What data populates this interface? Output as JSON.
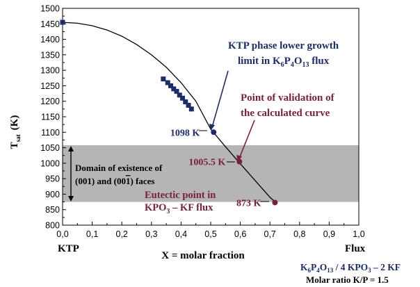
{
  "chart_data": {
    "type": "line",
    "xlim": [
      0,
      1.0
    ],
    "ylim": [
      800,
      1500
    ],
    "x_ticks": [
      0,
      0.1,
      0.2,
      0.3,
      0.4,
      0.5,
      0.6,
      0.7,
      0.8,
      0.9,
      1.0
    ],
    "x_tick_labels": [
      "0,0",
      "0,1",
      "0,2",
      "0,3",
      "0,4",
      "0,5",
      "0,6",
      "0,7",
      "0,8",
      "0,9",
      "1,0"
    ],
    "y_ticks": [
      800,
      850,
      900,
      950,
      1000,
      1050,
      1100,
      1150,
      1200,
      1250,
      1300,
      1350,
      1400,
      1450,
      1500
    ],
    "xlabel": "X = molar fraction",
    "ylabel_main": "T",
    "ylabel_sub": "sat",
    "ylabel_unit": "(K)",
    "x_end_left": "KTP",
    "x_end_right": "Flux",
    "series": [
      {
        "type": "line",
        "color": "#000000",
        "x": [
          0,
          0.05,
          0.1,
          0.15,
          0.2,
          0.25,
          0.3,
          0.35,
          0.4,
          0.45,
          0.5,
          0.55,
          0.6,
          0.65,
          0.7,
          0.72
        ],
        "y": [
          1455,
          1452,
          1444,
          1430,
          1410,
          1383,
          1350,
          1310,
          1260,
          1200,
          1110,
          1053,
          998,
          944,
          890,
          873
        ]
      },
      {
        "type": "scatter",
        "color": "#1c2c6a",
        "x": [
          0,
          0.34,
          0.355,
          0.365,
          0.375,
          0.385,
          0.395,
          0.405,
          0.415,
          0.425,
          0.435
        ],
        "y": [
          1455,
          1272,
          1260,
          1250,
          1240,
          1232,
          1220,
          1210,
          1198,
          1187,
          1175
        ]
      }
    ],
    "key_points": [
      {
        "x": 0.51,
        "y": 1100,
        "label": "1098 K",
        "color": "#1c2c6a"
      },
      {
        "x": 0.597,
        "y": 1005,
        "label": "1005.5 K",
        "color": "#7a1f3a"
      },
      {
        "x": 0.717,
        "y": 873,
        "label": "873 K",
        "color": "#7a1f3a"
      }
    ],
    "domain_band": {
      "y_from": 875,
      "y_to": 1058,
      "color": "#b5b5b5"
    },
    "annotations": {
      "ktp_limit_line1": "KTP phase lower growth",
      "ktp_limit_line2_a": "limit in K",
      "ktp_limit_line2_s1": "6",
      "ktp_limit_line2_b": "P",
      "ktp_limit_line2_s2": "4",
      "ktp_limit_line2_c": "O",
      "ktp_limit_line2_s3": "13",
      "ktp_limit_line2_d": " flux",
      "validation_line1": "Point of validation of",
      "validation_line2": "the calculated curve",
      "domain_line1": "Domain of existence of",
      "domain_line2_a": "(001) and (00",
      "domain_line2_bar": "1",
      "domain_line2_b": ") faces",
      "eutectic_line1": "Eutectic point in",
      "eutectic_line2": "KPO",
      "eutectic_line2_sub": "3",
      "eutectic_line2_b": " – KF flux",
      "flux_comp_a": "K",
      "flux_comp_s1": "6",
      "flux_comp_b": "P",
      "flux_comp_s2": "4",
      "flux_comp_c": "O",
      "flux_comp_s3": "13",
      "flux_comp_d": " / 4 KPO",
      "flux_comp_s4": "3",
      "flux_comp_e": " – 2 KF",
      "molar_ratio": "Molar ratio K/P = 1.5"
    }
  }
}
